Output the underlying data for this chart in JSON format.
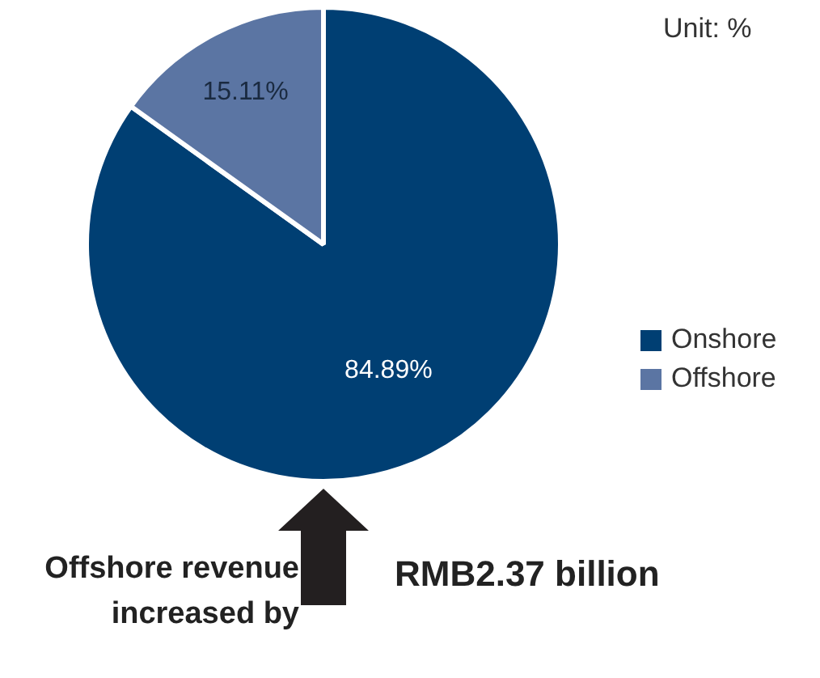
{
  "chart_data": {
    "type": "pie",
    "categories": [
      "Onshore",
      "Offshore"
    ],
    "values": [
      84.89,
      15.11
    ],
    "colors": [
      "#003f73",
      "#5b75a3"
    ],
    "value_labels": [
      "84.89%",
      "15.11%"
    ],
    "legend": "right",
    "annotations": [
      "Unit: %",
      "Offshore revenue increased by",
      "RMB2.37 billion"
    ]
  }
}
